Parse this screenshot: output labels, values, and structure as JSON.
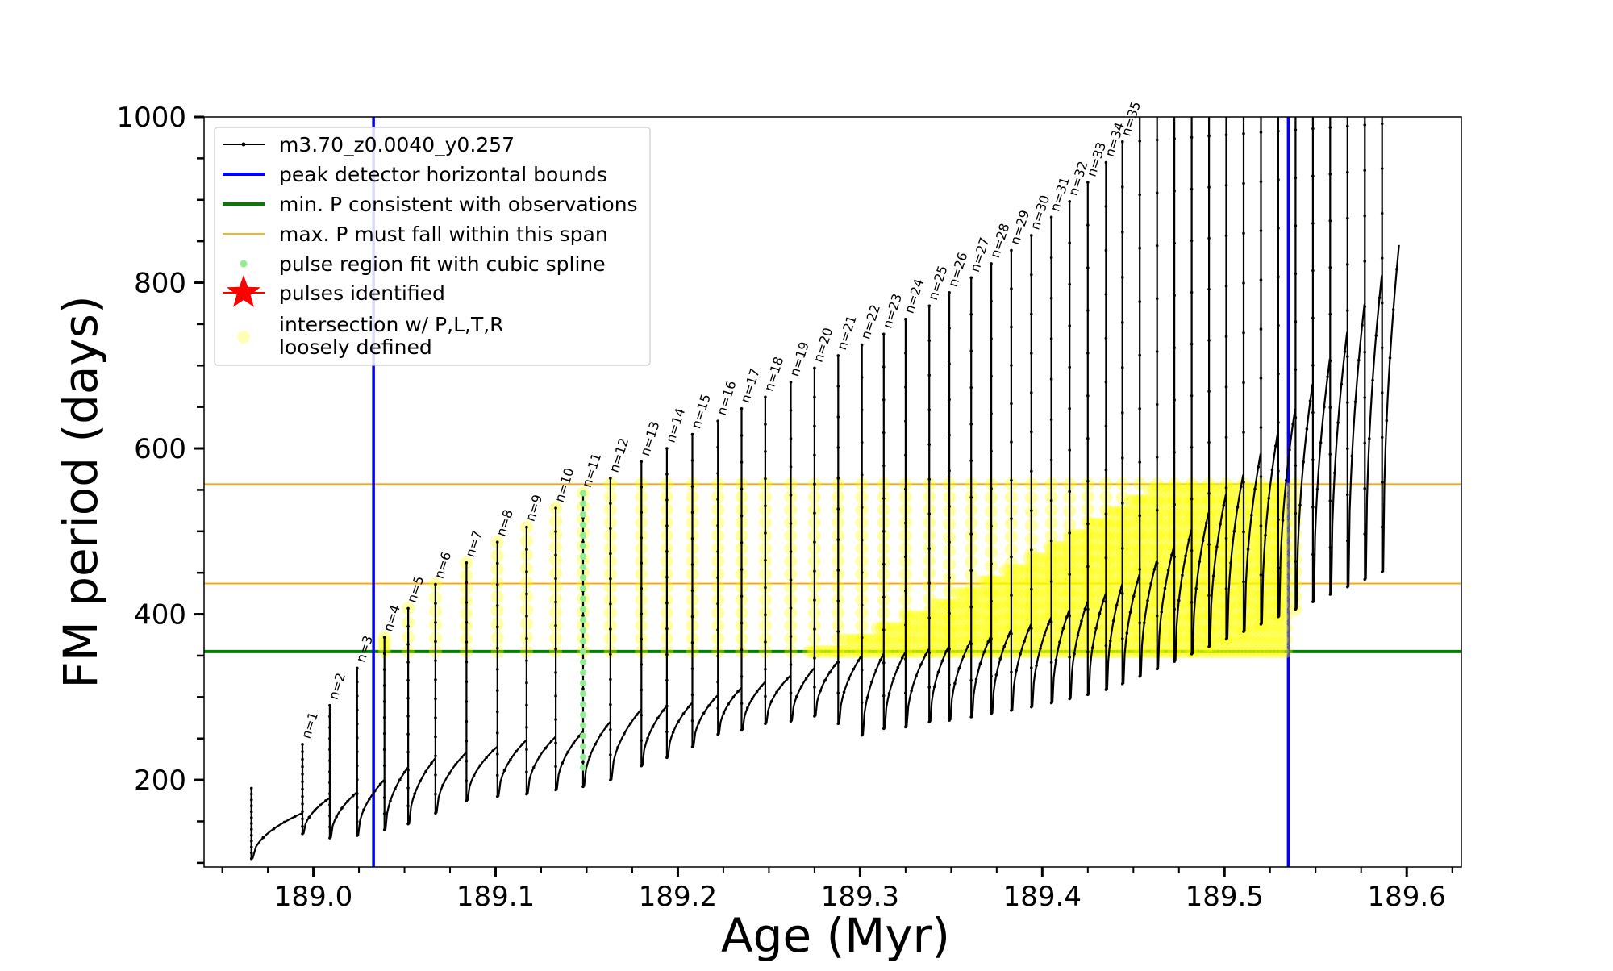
{
  "chart_data": {
    "type": "line",
    "title": "",
    "xlabel": "Age (Myr)",
    "ylabel": "FM period (days)",
    "xlim": [
      188.94,
      189.63
    ],
    "ylim": [
      95,
      1000
    ],
    "x_ticks": [
      189.0,
      189.1,
      189.2,
      189.3,
      189.4,
      189.5,
      189.6
    ],
    "x_tick_labels": [
      "189.0",
      "189.1",
      "189.2",
      "189.3",
      "189.4",
      "189.5",
      "189.6"
    ],
    "y_ticks": [
      200,
      400,
      600,
      800,
      1000
    ],
    "y_tick_labels": [
      "200",
      "400",
      "600",
      "800",
      "1000"
    ],
    "legend_position": "top-left",
    "legend": [
      {
        "label": "m3.70_z0.0040_y0.257",
        "color": "#000000",
        "marker": "line-dot"
      },
      {
        "label": "peak detector horizontal bounds",
        "color": "#0000ff",
        "marker": "line"
      },
      {
        "label": "min. P consistent with observations",
        "color": "#008000",
        "marker": "line"
      },
      {
        "label": "max. P must fall within this span",
        "color": "#ffa500",
        "marker": "line-thin"
      },
      {
        "label": "pulse region fit with cubic spline",
        "color": "#90ee90",
        "marker": "dot"
      },
      {
        "label": "pulses identified",
        "color": "#ff0000",
        "marker": "star"
      },
      {
        "label": "intersection w/ P,L,T,R\nloosely defined",
        "color": "#ffff99",
        "marker": "circle"
      }
    ],
    "vertical_lines": [
      {
        "x": 189.033,
        "color": "#0000ff",
        "series": "peak detector horizontal bounds"
      },
      {
        "x": 189.535,
        "color": "#0000ff",
        "series": "peak detector horizontal bounds"
      }
    ],
    "horizontal_lines": [
      {
        "y": 355,
        "color": "#008000",
        "series": "min. P consistent with observations"
      },
      {
        "y": 437,
        "color": "#ffa500",
        "series": "max. P must fall within this span"
      },
      {
        "y": 557,
        "color": "#ffa500",
        "series": "max. P must fall within this span"
      }
    ],
    "pulse_labels": [
      "n=1",
      "n=2",
      "n=3",
      "n=4",
      "n=5",
      "n=6",
      "n=7",
      "n=8",
      "n=9",
      "n=10",
      "n=11",
      "n=12",
      "n=13",
      "n=14",
      "n=15",
      "n=16",
      "n=17",
      "n=18",
      "n=19",
      "n=20",
      "n=21",
      "n=22",
      "n=23",
      "n=24",
      "n=25",
      "n=26",
      "n=27",
      "n=28",
      "n=29",
      "n=30",
      "n=31",
      "n=32",
      "n=33",
      "n=34",
      "n=35"
    ],
    "pulses": [
      {
        "x": 188.994,
        "peak": 243,
        "base_start": 135,
        "base_end": 178
      },
      {
        "x": 189.009,
        "peak": 290,
        "base_start": 130,
        "base_end": 185
      },
      {
        "x": 189.024,
        "peak": 335,
        "base_start": 133,
        "base_end": 200
      },
      {
        "x": 189.039,
        "peak": 372,
        "base_start": 140,
        "base_end": 215
      },
      {
        "x": 189.052,
        "peak": 407,
        "base_start": 147,
        "base_end": 226
      },
      {
        "x": 189.067,
        "peak": 436,
        "base_start": 160,
        "base_end": 233
      },
      {
        "x": 189.084,
        "peak": 462,
        "base_start": 175,
        "base_end": 240
      },
      {
        "x": 189.101,
        "peak": 487,
        "base_start": 180,
        "base_end": 248
      },
      {
        "x": 189.117,
        "peak": 505,
        "base_start": 183,
        "base_end": 252
      },
      {
        "x": 189.133,
        "peak": 528,
        "base_start": 188,
        "base_end": 258
      },
      {
        "x": 189.148,
        "peak": 546,
        "base_start": 192,
        "base_end": 270
      },
      {
        "x": 189.163,
        "peak": 564,
        "base_start": 200,
        "base_end": 285
      },
      {
        "x": 189.18,
        "peak": 584,
        "base_start": 217,
        "base_end": 289
      },
      {
        "x": 189.194,
        "peak": 600,
        "base_start": 227,
        "base_end": 293
      },
      {
        "x": 189.208,
        "peak": 617,
        "base_start": 240,
        "base_end": 302
      },
      {
        "x": 189.222,
        "peak": 633,
        "base_start": 255,
        "base_end": 311
      },
      {
        "x": 189.235,
        "peak": 648,
        "base_start": 260,
        "base_end": 318
      },
      {
        "x": 189.248,
        "peak": 662,
        "base_start": 268,
        "base_end": 326
      },
      {
        "x": 189.262,
        "peak": 680,
        "base_start": 271,
        "base_end": 335
      },
      {
        "x": 189.275,
        "peak": 697,
        "base_start": 277,
        "base_end": 343
      },
      {
        "x": 189.288,
        "peak": 712,
        "base_start": 268,
        "base_end": 350
      },
      {
        "x": 189.301,
        "peak": 725,
        "base_start": 254,
        "base_end": 352
      },
      {
        "x": 189.313,
        "peak": 738,
        "base_start": 262,
        "base_end": 354
      },
      {
        "x": 189.325,
        "peak": 756,
        "base_start": 264,
        "base_end": 358
      },
      {
        "x": 189.338,
        "peak": 772,
        "base_start": 270,
        "base_end": 362
      },
      {
        "x": 189.349,
        "peak": 788,
        "base_start": 272,
        "base_end": 368
      },
      {
        "x": 189.361,
        "peak": 806,
        "base_start": 276,
        "base_end": 374
      },
      {
        "x": 189.372,
        "peak": 823,
        "base_start": 280,
        "base_end": 381
      },
      {
        "x": 189.383,
        "peak": 839,
        "base_start": 284,
        "base_end": 388
      },
      {
        "x": 189.394,
        "peak": 857,
        "base_start": 288,
        "base_end": 396
      },
      {
        "x": 189.405,
        "peak": 879,
        "base_start": 293,
        "base_end": 405
      },
      {
        "x": 189.415,
        "peak": 898,
        "base_start": 298,
        "base_end": 415
      },
      {
        "x": 189.425,
        "peak": 921,
        "base_start": 303,
        "base_end": 425
      },
      {
        "x": 189.435,
        "peak": 945,
        "base_start": 309,
        "base_end": 436
      },
      {
        "x": 189.444,
        "peak": 970,
        "base_start": 316,
        "base_end": 448
      }
    ],
    "cubic_spline_pulse": {
      "x": 189.148,
      "y_min": 215,
      "y_max": 546
    },
    "annotations": [
      "n=1",
      "n=2",
      "n=3",
      "n=4",
      "n=5",
      "n=6",
      "n=7",
      "n=8",
      "n=9",
      "n=10",
      "n=11",
      "n=12",
      "n=13",
      "n=14",
      "n=15",
      "n=16",
      "n=17",
      "n=18",
      "n=19",
      "n=20",
      "n=21",
      "n=22",
      "n=23",
      "n=24",
      "n=25",
      "n=26",
      "n=27",
      "n=28",
      "n=29",
      "n=30",
      "n=31",
      "n=32",
      "n=33",
      "n=34",
      "n=35"
    ],
    "grid": false
  }
}
